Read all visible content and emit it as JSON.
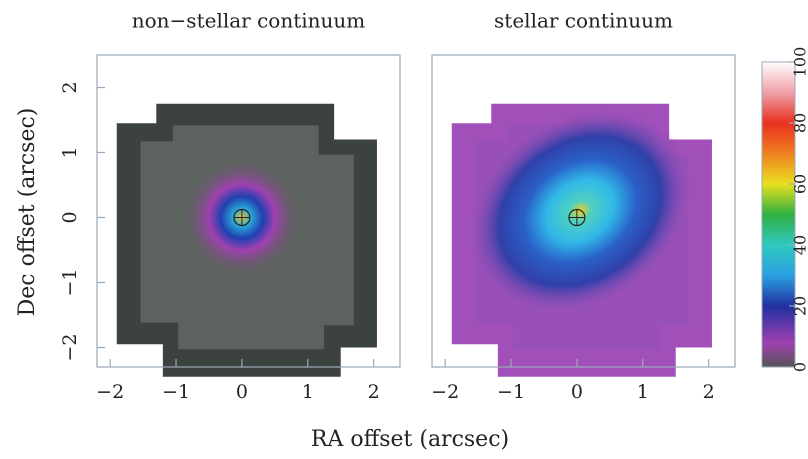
{
  "chart_data": [
    {
      "type": "image",
      "title": "non−stellar continuum",
      "style": "nonstellar",
      "xlim": [
        -2.2,
        2.4
      ],
      "ylim": [
        -2.3,
        2.5
      ],
      "xticks": [
        {
          "value": -2,
          "label": "−2"
        },
        {
          "value": -1,
          "label": "−1"
        },
        0,
        1,
        2
      ],
      "yticks": [
        {
          "value": -2,
          "label": "−2"
        },
        {
          "value": -1,
          "label": "−1"
        },
        0,
        1,
        2
      ]
    },
    {
      "type": "image",
      "title": "stellar continuum",
      "style": "stellar",
      "xlim": [
        -2.2,
        2.4
      ],
      "ylim": [
        -2.3,
        2.5
      ],
      "xticks": [
        {
          "value": -2,
          "label": "−2"
        },
        {
          "value": -1,
          "label": "−1"
        },
        0,
        1,
        2
      ],
      "yticks": []
    },
    {
      "type": "colorbar",
      "ylim": [
        0,
        100
      ],
      "yticks": [
        0,
        20,
        40,
        60,
        80,
        100
      ]
    }
  ],
  "xlabel": "RA offset (arcsec)",
  "ylabel": "Dec offset (arcsec)"
}
